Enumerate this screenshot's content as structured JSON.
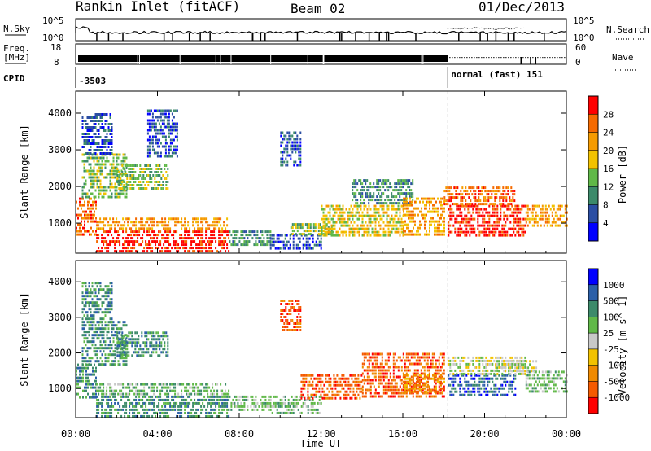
{
  "header": {
    "station": "Rankin Inlet (fitACF)",
    "beam": "Beam 02",
    "date": "01/Dec/2013"
  },
  "status_panels": {
    "nsky_label": "N.Sky",
    "nsky_ticks": [
      "10^5",
      "10^0"
    ],
    "nsearch_label": "N.Search",
    "nsearch_ticks": [
      "10^5",
      "10^0"
    ],
    "freq_label_1": "Freq.",
    "freq_label_2": "[MHz]",
    "freq_ticks": [
      "18",
      "8"
    ],
    "nave_label": "Nave",
    "nave_ticks": [
      "60",
      "0"
    ],
    "cpid_label": "CPID",
    "cpid_first": "-3503",
    "cpid_second": "normal (fast) 151",
    "cpid_switch_time": 18.2
  },
  "chart_data": [
    {
      "type": "heatmap",
      "name": "power",
      "ylabel": "Slant Range [km]",
      "xlabel": "",
      "xlim": [
        0,
        24
      ],
      "ylim": [
        180,
        4600
      ],
      "x_tick_values": [
        0,
        4,
        8,
        12,
        16,
        20,
        24
      ],
      "x_tick_labels": [
        "00:00",
        "04:00",
        "08:00",
        "12:00",
        "16:00",
        "20:00",
        "00:00"
      ],
      "y_ticks": [
        1000,
        2000,
        3000,
        4000
      ],
      "colorbar": {
        "label": "Power [dB]",
        "tick_labels": [
          "28",
          "24",
          "20",
          "16",
          "12",
          "8",
          "4"
        ],
        "colors": [
          "#0000ff",
          "#2b4ea3",
          "#3c8a6a",
          "#60b848",
          "#f2c200",
          "#f59b00",
          "#f56a00",
          "#ff0000"
        ]
      },
      "regions": [
        {
          "t": [
            0.0,
            1.0
          ],
          "r": [
            700,
            1700
          ],
          "level": 6
        },
        {
          "t": [
            0.3,
            2.5
          ],
          "r": [
            1700,
            2900
          ],
          "level": 3
        },
        {
          "t": [
            0.3,
            1.8
          ],
          "r": [
            2900,
            4000
          ],
          "level": 1
        },
        {
          "t": [
            1.0,
            7.5
          ],
          "r": [
            250,
            800
          ],
          "level": 7
        },
        {
          "t": [
            1.0,
            7.5
          ],
          "r": [
            800,
            1150
          ],
          "level": 5
        },
        {
          "t": [
            2.0,
            4.5
          ],
          "r": [
            1900,
            2600
          ],
          "level": 3
        },
        {
          "t": [
            3.5,
            5.0
          ],
          "r": [
            2800,
            4100
          ],
          "level": 1
        },
        {
          "t": [
            7.5,
            9.5
          ],
          "r": [
            400,
            800
          ],
          "level": 2
        },
        {
          "t": [
            9.5,
            12.0
          ],
          "r": [
            300,
            700
          ],
          "level": 1
        },
        {
          "t": [
            10.5,
            12.5
          ],
          "r": [
            700,
            1000
          ],
          "level": 3
        },
        {
          "t": [
            12.0,
            16.0
          ],
          "r": [
            700,
            1500
          ],
          "level": 4
        },
        {
          "t": [
            13.5,
            16.5
          ],
          "r": [
            1500,
            2200
          ],
          "level": 2
        },
        {
          "t": [
            16.0,
            18.0
          ],
          "r": [
            700,
            1700
          ],
          "level": 5
        },
        {
          "t": [
            18.2,
            22.0
          ],
          "r": [
            700,
            1500
          ],
          "level": 7
        },
        {
          "t": [
            18.0,
            21.5
          ],
          "r": [
            1500,
            2000
          ],
          "level": 6
        },
        {
          "t": [
            22.0,
            24.0
          ],
          "r": [
            900,
            1500
          ],
          "level": 5
        },
        {
          "t": [
            10.0,
            11.0
          ],
          "r": [
            2600,
            3500
          ],
          "level": 1
        }
      ]
    },
    {
      "type": "heatmap",
      "name": "velocity",
      "ylabel": "Slant Range [km]",
      "xlabel": "Time UT",
      "xlim": [
        0,
        24
      ],
      "ylim": [
        180,
        4600
      ],
      "x_tick_values": [
        0,
        4,
        8,
        12,
        16,
        20,
        24
      ],
      "x_tick_labels": [
        "00:00",
        "04:00",
        "08:00",
        "12:00",
        "16:00",
        "20:00",
        "00:00"
      ],
      "y_ticks": [
        1000,
        2000,
        3000,
        4000
      ],
      "colorbar": {
        "label": "Velocity [m s^-1]",
        "tick_labels": [
          "1000",
          "500",
          "100",
          "25",
          "-25",
          "-100",
          "-500",
          "-1000"
        ],
        "colors": [
          "#ff0000",
          "#f55a00",
          "#f08a00",
          "#f2c200",
          "#c8c8c8",
          "#60b848",
          "#3c8a6a",
          "#2b5fa8",
          "#0000ff"
        ]
      },
      "regions": [
        {
          "t": [
            0.0,
            1.0
          ],
          "r": [
            700,
            1700
          ],
          "level": 6
        },
        {
          "t": [
            0.3,
            2.5
          ],
          "r": [
            1700,
            2900
          ],
          "level": 6
        },
        {
          "t": [
            0.3,
            1.8
          ],
          "r": [
            2900,
            4000
          ],
          "level": 6
        },
        {
          "t": [
            1.0,
            7.5
          ],
          "r": [
            250,
            800
          ],
          "level": 6
        },
        {
          "t": [
            1.0,
            7.5
          ],
          "r": [
            800,
            1150
          ],
          "level": 5
        },
        {
          "t": [
            2.0,
            4.5
          ],
          "r": [
            1900,
            2600
          ],
          "level": 6
        },
        {
          "t": [
            7.5,
            9.5
          ],
          "r": [
            400,
            800
          ],
          "level": 5
        },
        {
          "t": [
            9.5,
            12.0
          ],
          "r": [
            300,
            800
          ],
          "level": 5
        },
        {
          "t": [
            11.0,
            14.0
          ],
          "r": [
            700,
            1400
          ],
          "level": 1
        },
        {
          "t": [
            14.0,
            18.0
          ],
          "r": [
            800,
            2000
          ],
          "level": 1
        },
        {
          "t": [
            16.0,
            18.0
          ],
          "r": [
            900,
            1400
          ],
          "level": 2
        },
        {
          "t": [
            18.2,
            21.5
          ],
          "r": [
            800,
            1400
          ],
          "level": 7
        },
        {
          "t": [
            18.2,
            22.0
          ],
          "r": [
            1400,
            1900
          ],
          "level": 4
        },
        {
          "t": [
            20.5,
            22.5
          ],
          "r": [
            1500,
            1800
          ],
          "level": 4
        },
        {
          "t": [
            22.0,
            24.0
          ],
          "r": [
            900,
            1500
          ],
          "level": 5
        },
        {
          "t": [
            10.0,
            11.0
          ],
          "r": [
            2600,
            3500
          ],
          "level": 1
        }
      ]
    }
  ]
}
